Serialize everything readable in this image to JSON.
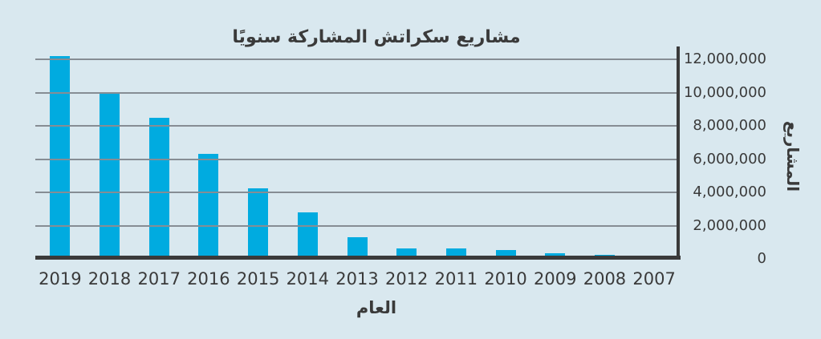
{
  "chart_data": {
    "type": "bar",
    "title": "مشاريع سكراتش المشاركة سنويًا",
    "xlabel": "العام",
    "ylabel": "المشاريع",
    "categories": [
      "2019",
      "2018",
      "2017",
      "2016",
      "2015",
      "2014",
      "2013",
      "2012",
      "2011",
      "2010",
      "2009",
      "2008",
      "2007"
    ],
    "values": [
      12200000,
      10000000,
      8500000,
      6300000,
      4250000,
      2800000,
      1300000,
      640000,
      610000,
      550000,
      330000,
      230000,
      160000
    ],
    "ylim": [
      0,
      12000000
    ],
    "ytick_interval": 2000000,
    "yticks": [
      "12,000,000",
      "10,000,000",
      "8,000,000",
      "6,000,000",
      "4,000,000",
      "2,000,000",
      "0"
    ],
    "grid": true,
    "legend": "none",
    "x_direction": "years-descending-left-to-right",
    "colors": {
      "bar": "#00abe0",
      "background": "#d9e8ef",
      "gridline": "#868d94",
      "axis": "#3a3a3a",
      "text": "#3a3a3a"
    }
  }
}
